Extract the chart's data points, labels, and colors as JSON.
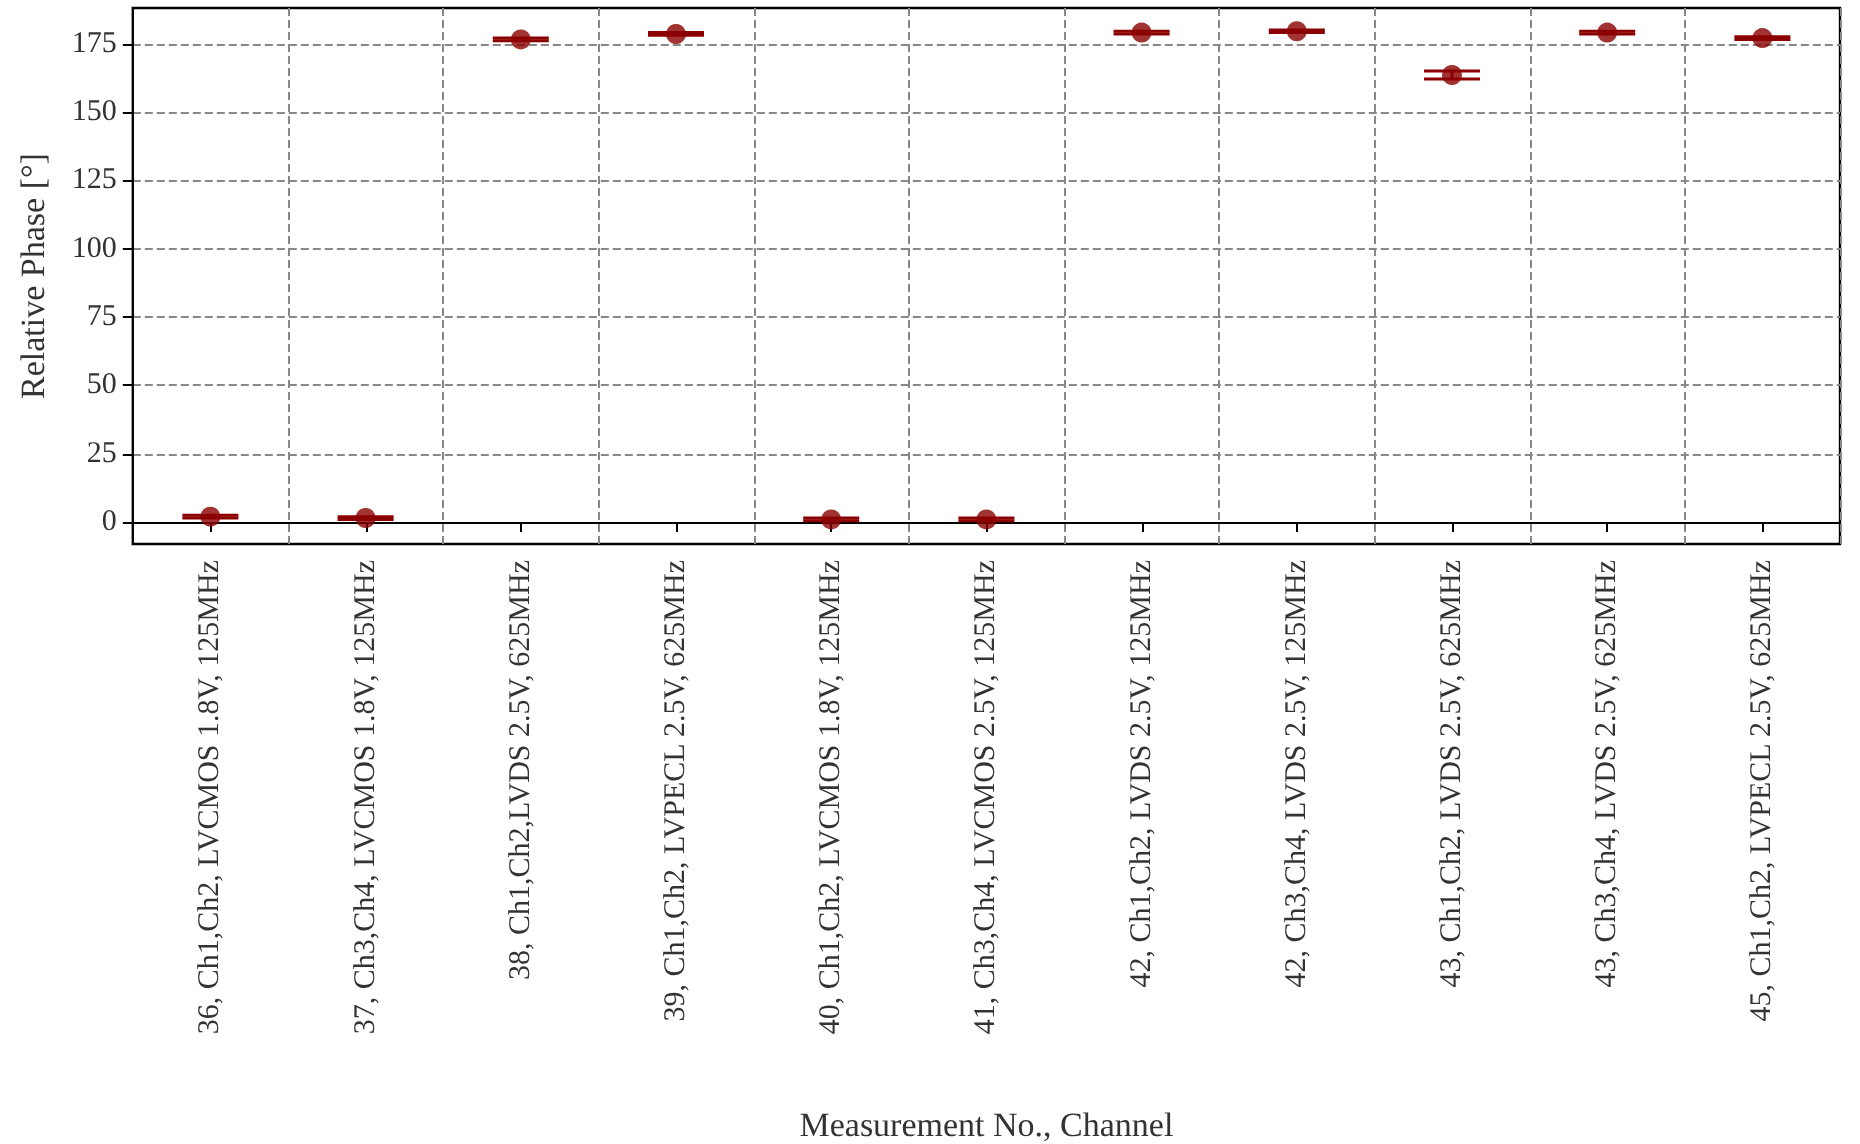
{
  "chart_data": {
    "type": "scatter",
    "xlabel": "Measurement No., Channel",
    "ylabel": "Relative Phase [°]",
    "categories": [
      "36, Ch1,Ch2, LVCMOS 1.8V, 125MHz",
      "37, Ch3,Ch4, LVCMOS 1.8V, 125MHz",
      "38, Ch1,Ch2,LVDS 2.5V, 625MHz",
      "39, Ch1,Ch2, LVPECL 2.5V, 625MHz",
      "40, Ch1,Ch2, LVCMOS 1.8V, 125MHz",
      "41, Ch3,Ch4, LVCMOS 2.5V, 125MHz",
      "42, Ch1,Ch2, LVDS 2.5V, 125MHz",
      "42, Ch3,Ch4, LVDS 2.5V, 125MHz",
      "43, Ch1,Ch2, LVDS 2.5V, 625MHz",
      "43, Ch3,Ch4, LVDS 2.5V, 625MHz",
      "45, Ch1,Ch2, LVPECL 2.5V, 625MHz"
    ],
    "values": [
      2,
      1.5,
      176.5,
      178.5,
      1,
      1,
      179,
      179.5,
      163.5,
      179,
      177
    ],
    "errors": [
      0.5,
      0.5,
      0.5,
      0.5,
      0.5,
      0.5,
      0.5,
      0.5,
      1.5,
      0.5,
      0.5
    ],
    "color": "#8b0000",
    "marker": "circle",
    "ylim": [
      -8,
      188
    ],
    "yticks": [
      0,
      25,
      50,
      75,
      100,
      125,
      150,
      175
    ],
    "grid": true
  }
}
